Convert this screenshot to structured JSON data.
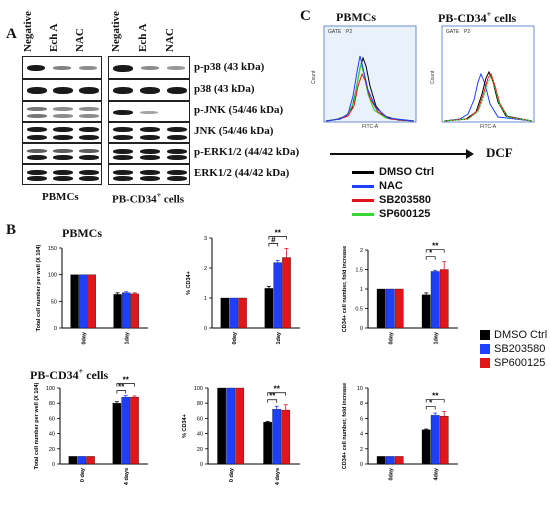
{
  "panel_a": {
    "letter": "A",
    "lanes": [
      "Negative",
      "Ech A",
      "NAC"
    ],
    "blot_labels": [
      "p-p38 (43 kDa)",
      "p38 (43 kDa)",
      "p-JNK (54/46 kDa)",
      "JNK (54/46 kDa)",
      "p-ERK1/2 (44/42 kDa)",
      "ERK1/2 (44/42 kDa)"
    ],
    "group_left": "PBMCs",
    "group_right_prefix": "PB-CD34",
    "group_right_sup": "+",
    "group_right_suffix": " cells"
  },
  "panel_c": {
    "letter": "C",
    "title_left": "PBMCs",
    "title_right_prefix": "PB-CD34",
    "title_right_sup": "+",
    "title_right_suffix": " cells",
    "gate_left": "GATE",
    "gate_left_id": "P2",
    "gate_right": "GATE",
    "gate_right_id": "P2",
    "y_axis": "Count",
    "x_axis": "FITC-A",
    "arrow_label": "DCF",
    "legend": [
      {
        "name": "DMSO Ctrl",
        "color": "#000000"
      },
      {
        "name": "NAC",
        "color": "#1f3fff"
      },
      {
        "name": "SB203580",
        "color": "#e0161b"
      },
      {
        "name": "SP600125",
        "color": "#37d637"
      }
    ]
  },
  "panel_b": {
    "letter": "B",
    "row1_title": "PBMCs",
    "row2_title_prefix": "PB-CD34",
    "row2_title_sup": "+",
    "row2_title_suffix": " cells",
    "legend": [
      {
        "name": "DMSO Ctrl",
        "color": "#000000"
      },
      {
        "name": "SB203580",
        "color": "#1f3fff"
      },
      {
        "name": "SP600125",
        "color": "#e0161b"
      }
    ]
  },
  "chart_data": [
    {
      "type": "bar",
      "id": "b1",
      "ylabel": "Total cell number per well (X 10",
      "ylabel_sup": "4",
      "ylabel_end": ")",
      "categories": [
        "0day",
        "1day"
      ],
      "ylim": [
        0,
        150
      ],
      "yticks": [
        0,
        50,
        100,
        150
      ],
      "series": [
        {
          "name": "DMSO Ctrl",
          "values": [
            100,
            63
          ]
        },
        {
          "name": "SB203580",
          "values": [
            100,
            66
          ]
        },
        {
          "name": "SP600125",
          "values": [
            100,
            64
          ]
        }
      ],
      "errors": [
        [
          0,
          3
        ],
        [
          0,
          2
        ],
        [
          0,
          2
        ]
      ],
      "sig": []
    },
    {
      "type": "bar",
      "id": "b2",
      "ylabel": "% CD34+",
      "categories": [
        "0day",
        "1day"
      ],
      "ylim": [
        0,
        3
      ],
      "yticks": [
        0,
        1,
        2,
        3
      ],
      "series": [
        {
          "name": "DMSO Ctrl",
          "values": [
            1,
            1.32
          ]
        },
        {
          "name": "SB203580",
          "values": [
            1,
            2.18
          ]
        },
        {
          "name": "SP600125",
          "values": [
            1,
            2.35
          ]
        }
      ],
      "errors": [
        [
          0,
          0.07
        ],
        [
          0,
          0.07
        ],
        [
          0,
          0.3
        ]
      ],
      "sig": [
        {
          "from": 0,
          "to": 1,
          "cat": 1,
          "label": "#"
        },
        {
          "from": 0,
          "to": 2,
          "cat": 1,
          "label": "**"
        }
      ]
    },
    {
      "type": "bar",
      "id": "b3",
      "ylabel": "CD34+ cell number, fold increase",
      "categories": [
        "0day",
        "1day"
      ],
      "ylim": [
        0,
        2
      ],
      "yticks": [
        0,
        0.5,
        1,
        1.5,
        2
      ],
      "series": [
        {
          "name": "DMSO Ctrl",
          "values": [
            1,
            0.85
          ]
        },
        {
          "name": "SB203580",
          "values": [
            1,
            1.45
          ]
        },
        {
          "name": "SP600125",
          "values": [
            1,
            1.5
          ]
        }
      ],
      "errors": [
        [
          0,
          0.05
        ],
        [
          0,
          0.03
        ],
        [
          0,
          0.2
        ]
      ],
      "sig": [
        {
          "from": 0,
          "to": 1,
          "cat": 1,
          "label": "*"
        },
        {
          "from": 0,
          "to": 2,
          "cat": 1,
          "label": "**"
        }
      ]
    },
    {
      "type": "bar",
      "id": "b4",
      "ylabel": "Total cell number per well (X 10",
      "ylabel_sup": "4",
      "ylabel_end": ")",
      "categories": [
        "0 day",
        "4 days"
      ],
      "ylim": [
        0,
        100
      ],
      "yticks": [
        0,
        20,
        40,
        60,
        80,
        100
      ],
      "series": [
        {
          "name": "DMSO Ctrl",
          "values": [
            10,
            80
          ]
        },
        {
          "name": "SB203580",
          "values": [
            10,
            88
          ]
        },
        {
          "name": "SP600125",
          "values": [
            10,
            88
          ]
        }
      ],
      "errors": [
        [
          0,
          2
        ],
        [
          0,
          2
        ],
        [
          0,
          1.5
        ]
      ],
      "sig": [
        {
          "from": 0,
          "to": 1,
          "cat": 1,
          "label": "**"
        },
        {
          "from": 0,
          "to": 2,
          "cat": 1,
          "label": "**"
        }
      ]
    },
    {
      "type": "bar",
      "id": "b5",
      "ylabel": "% CD34+",
      "categories": [
        "0 day",
        "4 days"
      ],
      "ylim": [
        0,
        100
      ],
      "yticks": [
        0,
        20,
        40,
        60,
        80,
        100
      ],
      "series": [
        {
          "name": "DMSO Ctrl",
          "values": [
            100,
            55
          ]
        },
        {
          "name": "SB203580",
          "values": [
            100,
            72
          ]
        },
        {
          "name": "SP600125",
          "values": [
            100,
            71
          ]
        }
      ],
      "errors": [
        [
          0,
          1
        ],
        [
          0,
          4
        ],
        [
          0,
          7
        ]
      ],
      "sig": [
        {
          "from": 0,
          "to": 1,
          "cat": 1,
          "label": "**"
        },
        {
          "from": 0,
          "to": 2,
          "cat": 1,
          "label": "**"
        }
      ]
    },
    {
      "type": "bar",
      "id": "b6",
      "ylabel": "CD34+ cell number, fold increase",
      "categories": [
        "0day",
        "4day"
      ],
      "ylim": [
        0,
        10
      ],
      "yticks": [
        0,
        2,
        4,
        6,
        8,
        10
      ],
      "series": [
        {
          "name": "DMSO Ctrl",
          "values": [
            1,
            4.5
          ]
        },
        {
          "name": "SB203580",
          "values": [
            1,
            6.4
          ]
        },
        {
          "name": "SP600125",
          "values": [
            1,
            6.3
          ]
        }
      ],
      "errors": [
        [
          0,
          0.1
        ],
        [
          0,
          0.3
        ],
        [
          0,
          0.6
        ]
      ],
      "sig": [
        {
          "from": 0,
          "to": 1,
          "cat": 1,
          "label": "*"
        },
        {
          "from": 0,
          "to": 2,
          "cat": 1,
          "label": "**"
        }
      ]
    }
  ]
}
